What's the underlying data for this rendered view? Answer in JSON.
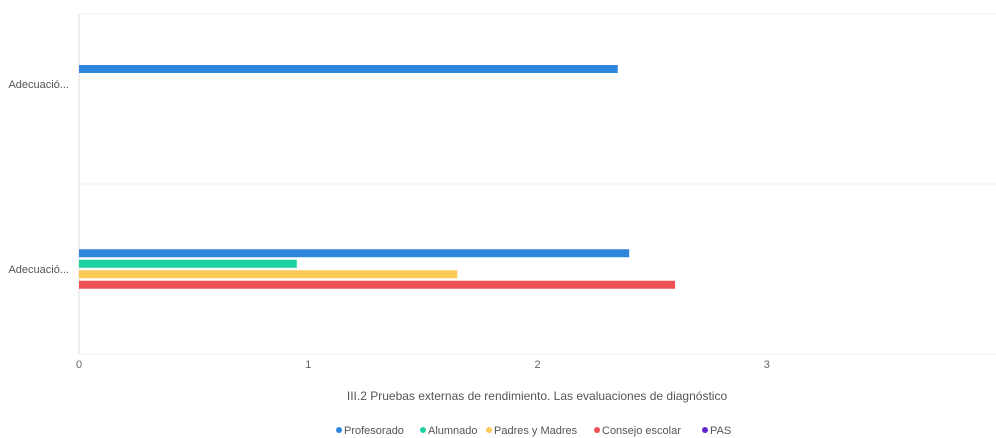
{
  "chart_data": {
    "type": "bar",
    "orientation": "horizontal",
    "title": "III.2 Pruebas externas de rendimiento. Las evaluaciones de diagnóstico",
    "categories": [
      "Adecuació...",
      "Adecuació..."
    ],
    "xlim": [
      0,
      4
    ],
    "x_ticks": [
      "0",
      "1",
      "2",
      "3"
    ],
    "grid": "horizontal category separators",
    "legend_position": "bottom",
    "series": [
      {
        "name": "Profesorado",
        "color": "#2e86de",
        "values": [
          2.35,
          2.4
        ]
      },
      {
        "name": "Alumnado",
        "color": "#1dd1a1",
        "values": [
          0,
          0.95
        ]
      },
      {
        "name": "Padres y Madres",
        "color": "#feca57",
        "values": [
          0,
          1.65
        ]
      },
      {
        "name": "Consejo escolar",
        "color": "#ee5253",
        "values": [
          0,
          2.6
        ]
      },
      {
        "name": "PAS",
        "color": "#5f27cd",
        "values": [
          0,
          0
        ]
      }
    ]
  }
}
